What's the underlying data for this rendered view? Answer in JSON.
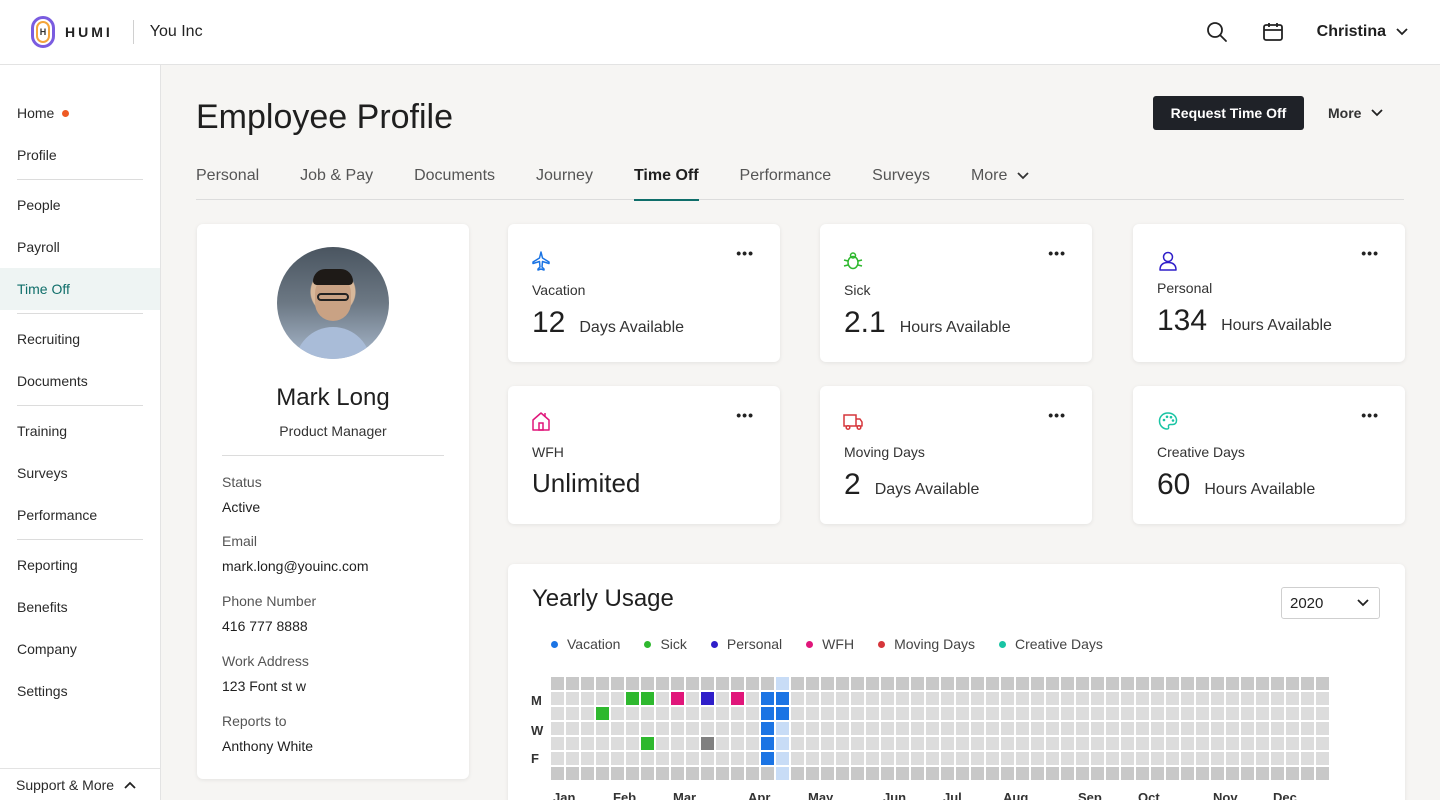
{
  "header": {
    "brand": "HUMI",
    "logo_letter": "H",
    "company": "You Inc",
    "user_name": "Christina",
    "icons": [
      "search-icon",
      "calendar-icon",
      "chevron-down-icon"
    ]
  },
  "sidebar": {
    "items": [
      {
        "label": "Home",
        "badge": true
      },
      {
        "label": "Profile"
      },
      {
        "label": "People"
      },
      {
        "label": "Payroll"
      },
      {
        "label": "Time Off",
        "active": true
      },
      {
        "label": "Recruiting"
      },
      {
        "label": "Documents"
      },
      {
        "label": "Training"
      },
      {
        "label": "Surveys"
      },
      {
        "label": "Performance"
      },
      {
        "label": "Reporting"
      },
      {
        "label": "Benefits"
      },
      {
        "label": "Company"
      },
      {
        "label": "Settings"
      }
    ],
    "support_label": "Support & More"
  },
  "page": {
    "title": "Employee Profile",
    "request_button": "Request Time Off",
    "more_label": "More"
  },
  "tabs": [
    {
      "label": "Personal"
    },
    {
      "label": "Job & Pay"
    },
    {
      "label": "Documents"
    },
    {
      "label": "Journey"
    },
    {
      "label": "Time Off",
      "active": true
    },
    {
      "label": "Performance"
    },
    {
      "label": "Surveys"
    },
    {
      "label": "More"
    }
  ],
  "profile": {
    "name": "Mark Long",
    "title": "Product Manager",
    "fields": [
      {
        "label": "Status",
        "value": "Active"
      },
      {
        "label": "Email",
        "value": "mark.long@youinc.com"
      },
      {
        "label": "Phone Number",
        "value": "416 777 8888"
      },
      {
        "label": "Work Address",
        "value": "123 Font st w"
      },
      {
        "label": "Reports to",
        "value": "Anthony White"
      }
    ]
  },
  "balances": [
    {
      "type": "Vacation",
      "amount": "12",
      "unit": "Days Available",
      "icon": "airplane-icon",
      "color": "#1b74e4"
    },
    {
      "type": "Sick",
      "amount": "2.1",
      "unit": "Hours Available",
      "icon": "bug-icon",
      "color": "#2eb82e"
    },
    {
      "type": "Personal",
      "amount": "134",
      "unit": "Hours Available",
      "icon": "person-icon",
      "color": "#2f1ec9"
    },
    {
      "type": "WFH",
      "amount": "Unlimited",
      "unit": "",
      "icon": "house-icon",
      "color": "#e0167a"
    },
    {
      "type": "Moving Days",
      "amount": "2",
      "unit": "Days Available",
      "icon": "truck-icon",
      "color": "#d6363b"
    },
    {
      "type": "Creative Days",
      "amount": "60",
      "unit": "Hours Available",
      "icon": "palette-icon",
      "color": "#19c4a4"
    }
  ],
  "usage": {
    "title": "Yearly Usage",
    "year": "2020",
    "legend": [
      {
        "label": "Vacation",
        "color": "#1b74e4"
      },
      {
        "label": "Sick",
        "color": "#2eb82e"
      },
      {
        "label": "Personal",
        "color": "#2f1ec9"
      },
      {
        "label": "WFH",
        "color": "#e0167a"
      },
      {
        "label": "Moving Days",
        "color": "#d6363b"
      },
      {
        "label": "Creative Days",
        "color": "#19c4a4"
      }
    ],
    "day_labels": [
      "M",
      "W",
      "F"
    ],
    "months": [
      "Jan",
      "Feb",
      "Mar",
      "Apr",
      "May",
      "Jun",
      "Jul",
      "Aug",
      "Sep",
      "Oct",
      "Nov",
      "Dec"
    ],
    "marked_days": [
      {
        "week": 5,
        "day": 1,
        "type": "Sick",
        "color": "#2eb82e"
      },
      {
        "week": 6,
        "day": 1,
        "type": "Sick",
        "color": "#2eb82e"
      },
      {
        "week": 6,
        "day": 1,
        "type": "Sick",
        "color": "#2eb82e"
      },
      {
        "week": 8,
        "day": 1,
        "type": "WFH",
        "color": "#e0167a"
      },
      {
        "week": 10,
        "day": 1,
        "type": "Personal",
        "color": "#2f1ec9"
      },
      {
        "week": 12,
        "day": 1,
        "type": "WFH",
        "color": "#e0167a"
      },
      {
        "week": 3,
        "day": 2,
        "type": "Sick",
        "color": "#2eb82e"
      },
      {
        "week": 6,
        "day": 4,
        "type": "Sick",
        "color": "#2eb82e"
      },
      {
        "week": 10,
        "day": 4,
        "type": "Unknown",
        "color": "#808080"
      },
      {
        "week": 14,
        "day": 1,
        "type": "Vacation",
        "color": "#1b74e4"
      },
      {
        "week": 14,
        "day": 2,
        "type": "Vacation",
        "color": "#1b74e4"
      },
      {
        "week": 14,
        "day": 3,
        "type": "Vacation",
        "color": "#1b74e4"
      },
      {
        "week": 14,
        "day": 4,
        "type": "Vacation",
        "color": "#1b74e4"
      },
      {
        "week": 14,
        "day": 5,
        "type": "Vacation",
        "color": "#1b74e4"
      },
      {
        "week": 15,
        "day": 1,
        "type": "Vacation",
        "color": "#1b74e4"
      },
      {
        "week": 15,
        "day": 2,
        "type": "Vacation",
        "color": "#1b74e4"
      }
    ],
    "highlight_week": 15
  }
}
